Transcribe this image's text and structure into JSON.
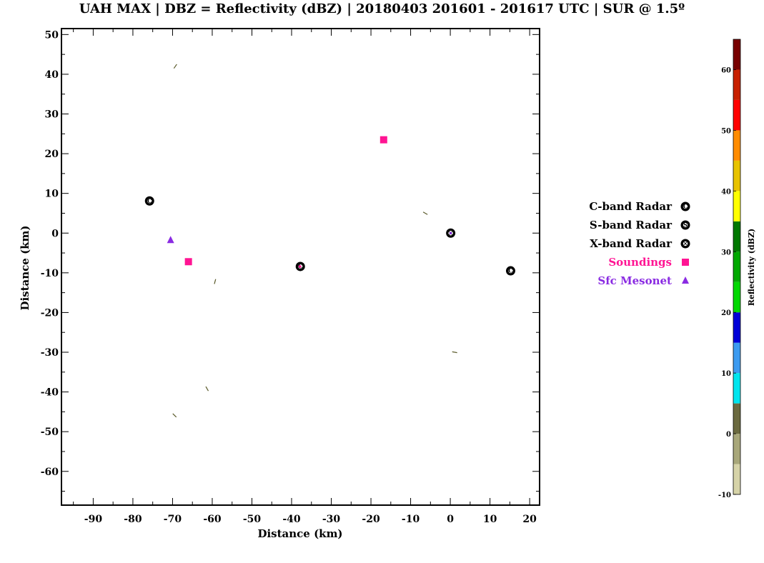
{
  "chart_data": {
    "type": "scatter",
    "title": "UAH MAX | DBZ = Reflectivity (dBZ) | 20180403 201601 - 201617 UTC | SUR @ 1.5º",
    "xlabel": "Distance (km)",
    "ylabel": "Distance (km)",
    "xlim": [
      -98,
      22.5
    ],
    "ylim": [
      -68.5,
      51.5
    ],
    "xticks": [
      -90,
      -80,
      -70,
      -60,
      -50,
      -40,
      -30,
      -20,
      -10,
      0,
      10,
      20
    ],
    "yticks": [
      50,
      40,
      30,
      20,
      10,
      0,
      -10,
      -20,
      -30,
      -40,
      -50,
      -60
    ],
    "grid": false,
    "legend_position": "right",
    "series": [
      {
        "name": "C-band Radar",
        "marker": "circle-C",
        "color": "#000000",
        "points": [
          {
            "x": -75.8,
            "y": 8.1
          },
          {
            "x": -37.8,
            "y": -8.4
          },
          {
            "x": 15.2,
            "y": -9.5
          }
        ]
      },
      {
        "name": "S-band Radar",
        "marker": "circle-S",
        "color": "#000000",
        "points": []
      },
      {
        "name": "X-band Radar",
        "marker": "circle-X",
        "color": "#000000",
        "points": [
          {
            "x": 0.1,
            "y": 0.0
          }
        ]
      },
      {
        "name": "Soundings",
        "marker": "square",
        "color": "#ff1493",
        "points": [
          {
            "x": -16.8,
            "y": 23.5
          },
          {
            "x": -66.0,
            "y": -7.2
          }
        ]
      },
      {
        "name": "Sfc Mesonet",
        "marker": "triangle",
        "color": "#8a2be2",
        "points": [
          {
            "x": -70.5,
            "y": -1.8
          }
        ]
      }
    ],
    "echo_streaks": [
      {
        "x": -69.3,
        "y": 42.0,
        "angle": -55
      },
      {
        "x": -6.3,
        "y": 5.0,
        "angle": 30
      },
      {
        "x": -59.3,
        "y": -12.2,
        "angle": -75
      },
      {
        "x": 1.1,
        "y": -30.0,
        "angle": 10
      },
      {
        "x": -61.3,
        "y": -39.2,
        "angle": 60
      },
      {
        "x": -69.5,
        "y": -45.9,
        "angle": 45
      }
    ],
    "echo_color": "#5a5a2a",
    "colorbar": {
      "title": "Reflectivity (dBZ)",
      "range": [
        -10,
        65
      ],
      "tick_labels": [
        "-10",
        "0",
        "10",
        "20",
        "30",
        "40",
        "50",
        "60"
      ],
      "segments": [
        {
          "from": -10,
          "to": -5,
          "color": "#d6d3a8"
        },
        {
          "from": -5,
          "to": 0,
          "color": "#a8a77a"
        },
        {
          "from": 0,
          "to": 5,
          "color": "#6b6a40"
        },
        {
          "from": 5,
          "to": 10,
          "color": "#00e5ee"
        },
        {
          "from": 10,
          "to": 15,
          "color": "#3d9bf0"
        },
        {
          "from": 15,
          "to": 20,
          "color": "#0000d8"
        },
        {
          "from": 20,
          "to": 25,
          "color": "#00d800"
        },
        {
          "from": 25,
          "to": 30,
          "color": "#00a800"
        },
        {
          "from": 30,
          "to": 35,
          "color": "#007800"
        },
        {
          "from": 35,
          "to": 40,
          "color": "#ffff00"
        },
        {
          "from": 40,
          "to": 45,
          "color": "#e8c300"
        },
        {
          "from": 45,
          "to": 50,
          "color": "#ff8c00"
        },
        {
          "from": 50,
          "to": 55,
          "color": "#ff0000"
        },
        {
          "from": 55,
          "to": 60,
          "color": "#c82000"
        },
        {
          "from": 60,
          "to": 65,
          "color": "#780000"
        }
      ]
    }
  }
}
